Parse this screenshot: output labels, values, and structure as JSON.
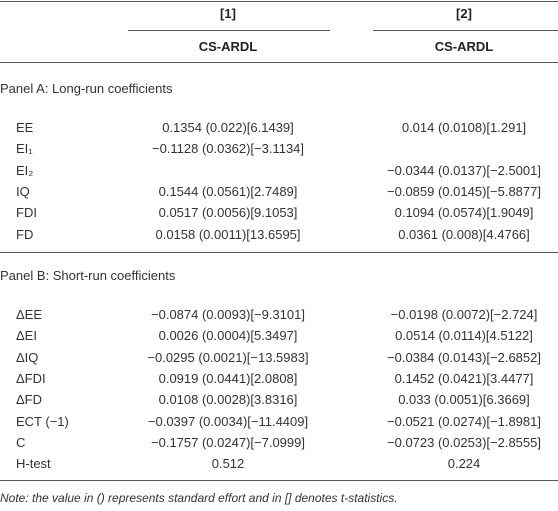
{
  "header": {
    "columns": [
      "[1]",
      "[2]"
    ],
    "subheaders": [
      "CS-ARDL",
      "CS-ARDL"
    ]
  },
  "panels": [
    {
      "title": "Panel A: Long-run coefficients",
      "rows": [
        [
          "EE",
          "0.1354 (0.022)[6.1439]",
          "0.014 (0.0108)[1.291]"
        ],
        [
          "EI₁",
          "−0.1128 (0.0362)[−3.1134]",
          null
        ],
        [
          "EI₂",
          null,
          "−0.0344 (0.0137)[−2.5001]"
        ],
        [
          "IQ",
          "0.1544 (0.0561)[2.7489]",
          "−0.0859 (0.0145)[−5.8877]"
        ],
        [
          "FDI",
          "0.0517 (0.0056)[9.1053]",
          "0.1094 (0.0574)[1.9049]"
        ],
        [
          "FD",
          "0.0158 (0.0011)[13.6595]",
          "0.0361 (0.008)[4.4766]"
        ]
      ]
    },
    {
      "title": "Panel B: Short-run coefficients",
      "rows": [
        [
          "ΔEE",
          "−0.0874 (0.0093)[−9.3101]",
          "−0.0198 (0.0072)[−2.724]"
        ],
        [
          "ΔEI",
          "0.0026 (0.0004)[5.3497]",
          "0.0514 (0.0114)[4.5122]"
        ],
        [
          "ΔIQ",
          "−0.0295 (0.0021)[−13.5983]",
          "−0.0384 (0.0143)[−2.6852]"
        ],
        [
          "ΔFDI",
          "0.0919 (0.0441)[2.0808]",
          "0.1452 (0.0421)[3.4477]"
        ],
        [
          "ΔFD",
          "0.0108 (0.0028)[3.8316]",
          "0.033 (0.0051)[6.3669]"
        ],
        [
          "ECT (−1)",
          "−0.0397 (0.0034)[−11.4409]",
          "−0.0521 (0.0274)[−1.8981]"
        ],
        [
          "C",
          "−0.1757 (0.0247)[−7.0999]",
          "−0.0723 (0.0253)[−2.8555]"
        ],
        [
          "H-test",
          "0.512",
          "0.224"
        ]
      ]
    }
  ],
  "note": "Note: the value in () represents standard effort and in [] denotes t-statistics."
}
